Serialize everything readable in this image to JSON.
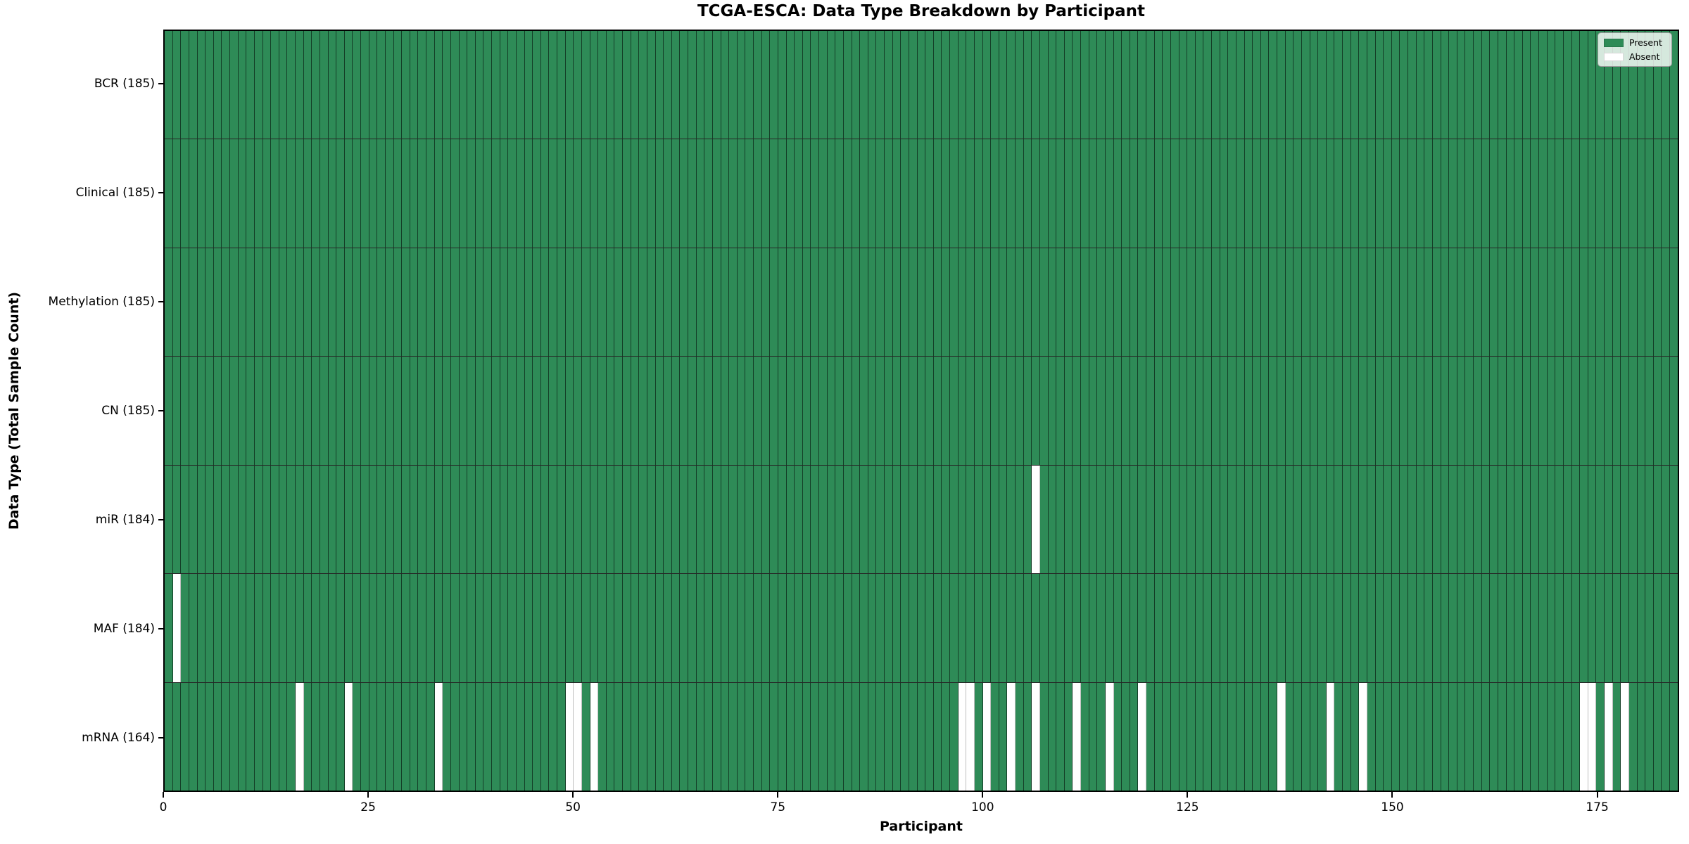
{
  "chart_data": {
    "type": "heatmap",
    "title": "TCGA-ESCA: Data Type Breakdown by Participant",
    "xlabel": "Participant",
    "ylabel": "Data Type (Total Sample Count)",
    "n_participants": 185,
    "x_ticks": [
      0,
      25,
      50,
      75,
      100,
      125,
      150,
      175
    ],
    "xlim": [
      0,
      185
    ],
    "grid": false,
    "legend_position": "upper right",
    "legend": [
      {
        "label": "Present",
        "color": "#2e8b57"
      },
      {
        "label": "Absent",
        "color": "#ffffff"
      }
    ],
    "colors": {
      "present": "#2e8b57",
      "absent": "#ffffff",
      "cell_edge": "rgba(0,0,0,0.55)",
      "row_divider": "rgba(0,0,0,0.85)",
      "spine": "#000000"
    },
    "rows": [
      {
        "key": "BCR",
        "label": "BCR (185)",
        "total_count": 185,
        "absent_participants": []
      },
      {
        "key": "Clinical",
        "label": "Clinical (185)",
        "total_count": 185,
        "absent_participants": []
      },
      {
        "key": "Methylation",
        "label": "Methylation (185)",
        "total_count": 185,
        "absent_participants": []
      },
      {
        "key": "CN",
        "label": "CN (185)",
        "total_count": 185,
        "absent_participants": []
      },
      {
        "key": "miR",
        "label": "miR (184)",
        "total_count": 184,
        "absent_participants": [
          106
        ]
      },
      {
        "key": "MAF",
        "label": "MAF (184)",
        "total_count": 184,
        "absent_participants": [
          1
        ]
      },
      {
        "key": "mRNA",
        "label": "mRNA (164)",
        "total_count": 164,
        "absent_participants": [
          16,
          22,
          33,
          49,
          50,
          52,
          97,
          98,
          100,
          103,
          106,
          111,
          115,
          119,
          136,
          142,
          146,
          173,
          174,
          176,
          178
        ]
      }
    ]
  }
}
